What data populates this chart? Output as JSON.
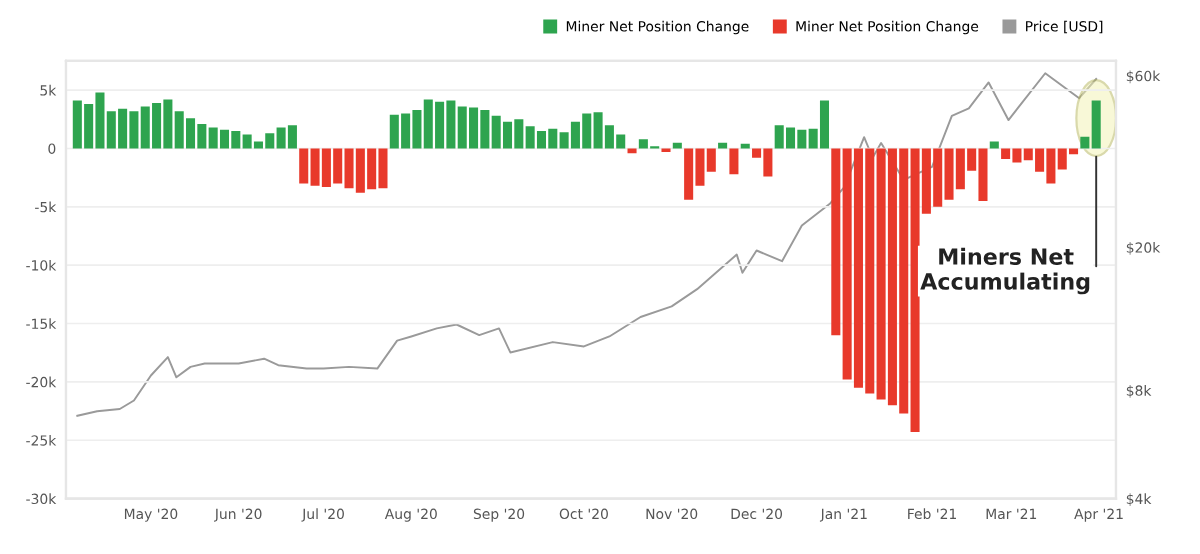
{
  "chart_data": {
    "type": "bar",
    "legend": "top right",
    "grid": "y",
    "xlim": [
      "2020-04-01",
      "2021-04-07"
    ],
    "xticks": [
      {
        "value": "2020-05-01",
        "label": "May '20"
      },
      {
        "value": "2020-06-01",
        "label": "Jun '20"
      },
      {
        "value": "2020-07-01",
        "label": "Jul '20"
      },
      {
        "value": "2020-08-01",
        "label": "Aug '20"
      },
      {
        "value": "2020-09-01",
        "label": "Sep '20"
      },
      {
        "value": "2020-10-01",
        "label": "Oct '20"
      },
      {
        "value": "2020-11-01",
        "label": "Nov '20"
      },
      {
        "value": "2020-12-01",
        "label": "Dec '20"
      },
      {
        "value": "2021-01-01",
        "label": "Jan '21"
      },
      {
        "value": "2021-02-01",
        "label": "Feb '21"
      },
      {
        "value": "2021-03-01",
        "label": "Mar '21"
      },
      {
        "value": "2021-04-01",
        "label": "Apr '21"
      }
    ],
    "ylim": [
      -30000,
      7500
    ],
    "yticks": [
      {
        "value": 5000,
        "label": "5k"
      },
      0,
      {
        "value": -5000,
        "label": "-5k"
      },
      {
        "value": -10000,
        "label": "-10k"
      },
      {
        "value": -15000,
        "label": "-15k"
      },
      {
        "value": -20000,
        "label": "-20k"
      },
      {
        "value": -25000,
        "label": "-25k"
      },
      {
        "value": -30000,
        "label": "-30k"
      }
    ],
    "log": "y2",
    "y2lim": [
      4000,
      66000
    ],
    "y2ticks": [
      {
        "value": 4000,
        "label": "$4k"
      },
      {
        "value": 8000,
        "label": "$8k"
      },
      {
        "value": 20000,
        "label": "$20k"
      },
      {
        "value": 60000,
        "label": "$60k"
      }
    ],
    "annotations": [
      {
        "text": "Miners Net\nAccumulating",
        "x": "2021-03-31",
        "y": -700
      }
    ],
    "series": [
      {
        "name": "Miner Net Position Change",
        "color": "#2ea44f",
        "x": [
          "2020-04-05",
          "2020-04-09",
          "2020-04-13",
          "2020-04-17",
          "2020-04-21",
          "2020-04-25",
          "2020-04-29",
          "2020-05-03",
          "2020-05-07",
          "2020-05-11",
          "2020-05-15",
          "2020-05-19",
          "2020-05-23",
          "2020-05-27",
          "2020-05-31",
          "2020-06-04",
          "2020-06-08",
          "2020-06-12",
          "2020-06-16",
          "2020-06-20",
          "2020-07-26",
          "2020-07-30",
          "2020-08-03",
          "2020-08-07",
          "2020-08-11",
          "2020-08-15",
          "2020-08-19",
          "2020-08-23",
          "2020-08-27",
          "2020-08-31",
          "2020-09-04",
          "2020-09-08",
          "2020-09-12",
          "2020-09-16",
          "2020-09-20",
          "2020-09-24",
          "2020-09-28",
          "2020-10-02",
          "2020-10-06",
          "2020-10-10",
          "2020-10-14",
          "2020-10-22",
          "2020-10-26",
          "2020-11-03",
          "2020-11-19",
          "2020-11-27",
          "2020-12-09",
          "2020-12-13",
          "2020-12-17",
          "2020-12-21",
          "2020-12-25",
          "2021-02-23",
          "2021-03-27",
          "2021-03-31"
        ],
        "values": [
          4100,
          3800,
          4800,
          3200,
          3400,
          3200,
          3600,
          3900,
          4200,
          3200,
          2600,
          2100,
          1800,
          1600,
          1500,
          1200,
          600,
          1300,
          1800,
          2000,
          2900,
          3000,
          3300,
          4200,
          4000,
          4100,
          3600,
          3500,
          3300,
          2800,
          2300,
          2500,
          1900,
          1500,
          1700,
          1400,
          2300,
          3000,
          3100,
          2000,
          1200,
          800,
          200,
          500,
          500,
          400,
          2000,
          1800,
          1600,
          1700,
          4100,
          600,
          1000,
          4100
        ]
      },
      {
        "name": "Miner Net Position Change",
        "color": "#e8392b",
        "x": [
          "2020-06-24",
          "2020-06-28",
          "2020-07-02",
          "2020-07-06",
          "2020-07-10",
          "2020-07-14",
          "2020-07-18",
          "2020-07-22",
          "2020-10-18",
          "2020-10-30",
          "2020-11-07",
          "2020-11-11",
          "2020-11-15",
          "2020-11-23",
          "2020-12-01",
          "2020-12-05",
          "2020-12-29",
          "2021-01-02",
          "2021-01-06",
          "2021-01-10",
          "2021-01-14",
          "2021-01-18",
          "2021-01-22",
          "2021-01-26",
          "2021-01-30",
          "2021-02-03",
          "2021-02-07",
          "2021-02-11",
          "2021-02-15",
          "2021-02-19",
          "2021-02-27",
          "2021-03-03",
          "2021-03-07",
          "2021-03-11",
          "2021-03-15",
          "2021-03-19",
          "2021-03-23"
        ],
        "values": [
          -3000,
          -3200,
          -3300,
          -3000,
          -3400,
          -3800,
          -3500,
          -3400,
          -400,
          -300,
          -4400,
          -3200,
          -2000,
          -2200,
          -800,
          -2400,
          -16000,
          -19800,
          -20500,
          -21000,
          -21500,
          -22000,
          -22700,
          -24300,
          -5600,
          -5000,
          -4400,
          -3500,
          -1900,
          -4500,
          -900,
          -1200,
          -1000,
          -2000,
          -3000,
          -1800,
          -500
        ]
      },
      {
        "name": "Price [USD]",
        "type": "line",
        "axis": "y2",
        "color": "#9a9a9a",
        "x": [
          "2020-04-05",
          "2020-04-12",
          "2020-04-20",
          "2020-04-25",
          "2020-05-01",
          "2020-05-07",
          "2020-05-10",
          "2020-05-15",
          "2020-05-20",
          "2020-06-01",
          "2020-06-10",
          "2020-06-15",
          "2020-06-25",
          "2020-07-01",
          "2020-07-10",
          "2020-07-20",
          "2020-07-27",
          "2020-08-01",
          "2020-08-10",
          "2020-08-17",
          "2020-08-25",
          "2020-09-01",
          "2020-09-05",
          "2020-09-20",
          "2020-10-01",
          "2020-10-10",
          "2020-10-21",
          "2020-11-01",
          "2020-11-10",
          "2020-11-24",
          "2020-11-26",
          "2020-12-01",
          "2020-12-10",
          "2020-12-17",
          "2020-12-27",
          "2021-01-01",
          "2021-01-08",
          "2021-01-11",
          "2021-01-14",
          "2021-01-22",
          "2021-02-01",
          "2021-02-08",
          "2021-02-14",
          "2021-02-21",
          "2021-02-28",
          "2021-03-13",
          "2021-03-25",
          "2021-03-31"
        ],
        "values": [
          6800,
          7000,
          7100,
          7500,
          8800,
          9900,
          8700,
          9300,
          9500,
          9500,
          9800,
          9400,
          9200,
          9200,
          9300,
          9200,
          11000,
          11300,
          11900,
          12200,
          11400,
          11900,
          10200,
          10900,
          10600,
          11300,
          12800,
          13700,
          15300,
          19100,
          17000,
          19600,
          18300,
          23000,
          26500,
          29400,
          40500,
          35500,
          39000,
          30800,
          33500,
          46400,
          48700,
          57500,
          45200,
          61000,
          52000,
          58800
        ]
      }
    ]
  }
}
